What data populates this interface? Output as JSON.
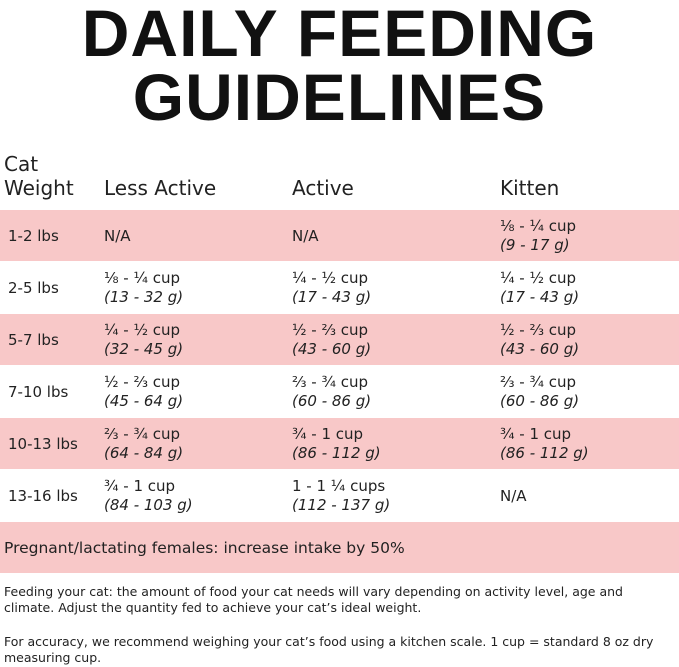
{
  "header": {
    "title_lines": [
      "DAILY FEEDING",
      "GUIDELINES"
    ]
  },
  "table": {
    "columns": [
      "Cat Weight",
      "Less Active",
      "Active",
      "Kitten"
    ],
    "rows": [
      {
        "weight": "1-2 lbs",
        "cells": [
          {
            "text": "N/A"
          },
          {
            "text": "N/A"
          },
          {
            "cup": "⅛ - ¼ cup",
            "grams": "(9 - 17 g)"
          }
        ]
      },
      {
        "weight": "2-5 lbs",
        "cells": [
          {
            "cup": "⅛ - ¼ cup",
            "grams": "(13 - 32 g)"
          },
          {
            "cup": "¼ - ½ cup",
            "grams": "(17 - 43 g)"
          },
          {
            "cup": "¼ - ½ cup",
            "grams": "(17 - 43 g)"
          }
        ]
      },
      {
        "weight": "5-7 lbs",
        "cells": [
          {
            "cup": "¼ - ½ cup",
            "grams": "(32 - 45 g)"
          },
          {
            "cup": "½ - ⅔ cup",
            "grams": "(43 - 60 g)"
          },
          {
            "cup": "½ - ⅔ cup",
            "grams": "(43 - 60 g)"
          }
        ]
      },
      {
        "weight": "7-10 lbs",
        "cells": [
          {
            "cup": "½ - ⅔ cup",
            "grams": "(45 - 64 g)"
          },
          {
            "cup": "⅔ - ¾ cup",
            "grams": "(60 - 86 g)"
          },
          {
            "cup": "⅔ - ¾ cup",
            "grams": "(60 - 86 g)"
          }
        ]
      },
      {
        "weight": "10-13 lbs",
        "cells": [
          {
            "cup": "⅔ - ¾ cup",
            "grams": "(64 - 84 g)"
          },
          {
            "cup": "¾ - 1 cup",
            "grams": "(86 - 112 g)"
          },
          {
            "cup": "¾ - 1 cup",
            "grams": "(86 - 112 g)"
          }
        ]
      },
      {
        "weight": "13-16 lbs",
        "cells": [
          {
            "cup": "¾ - 1 cup",
            "grams": "(84 - 103 g)"
          },
          {
            "cup": "1 - 1 ¼ cups",
            "grams": "(112 - 137 g)"
          },
          {
            "text": "N/A"
          }
        ]
      }
    ],
    "note": "Pregnant/lactating females: increase intake by 50%"
  },
  "footer": {
    "paragraphs": [
      "Feeding your cat: the amount of food your cat needs will vary depending on activity level, age and climate. Adjust the quantity fed to achieve your cat’s ideal weight.",
      "For accuracy, we recommend weighing your cat’s food using a kitchen scale. 1 cup = standard 8 oz dry measuring cup."
    ]
  }
}
